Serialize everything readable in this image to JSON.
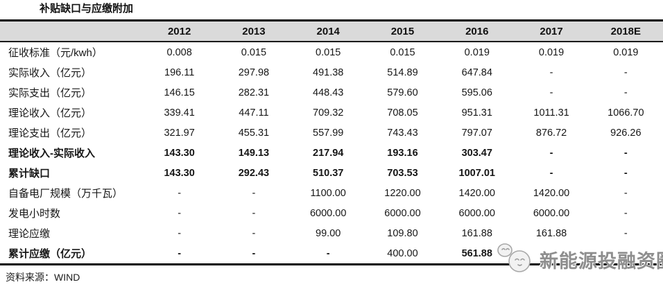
{
  "title": "补贴缺口与应缴附加",
  "source": "资料来源：WIND",
  "watermark": {
    "text": "新能源投融资圈",
    "icon": "panda-chat-bubble-icon"
  },
  "colors": {
    "header_bg": "#dadada",
    "border": "#000000",
    "watermark_gray": "#8e8e8e",
    "text": "#141414"
  },
  "chart_data": {
    "type": "table",
    "title": "补贴缺口与应缴附加",
    "columns": [
      "",
      "2012",
      "2013",
      "2014",
      "2015",
      "2016",
      "2017",
      "2018E"
    ],
    "rows": [
      {
        "label": "征收标准（元/kwh）",
        "bold": false,
        "values": [
          "0.008",
          "0.015",
          "0.015",
          "0.015",
          "0.019",
          "0.019",
          "0.019"
        ]
      },
      {
        "label": "实际收入（亿元）",
        "bold": false,
        "values": [
          "196.11",
          "297.98",
          "491.38",
          "514.89",
          "647.84",
          "-",
          "-"
        ]
      },
      {
        "label": "实际支出（亿元）",
        "bold": false,
        "values": [
          "146.15",
          "282.31",
          "448.43",
          "579.60",
          "595.06",
          "-",
          "-"
        ]
      },
      {
        "label": "理论收入（亿元）",
        "bold": false,
        "values": [
          "339.41",
          "447.11",
          "709.32",
          "708.05",
          "951.31",
          "1011.31",
          "1066.70"
        ]
      },
      {
        "label": "理论支出（亿元）",
        "bold": false,
        "values": [
          "321.97",
          "455.31",
          "557.99",
          "743.43",
          "797.07",
          "876.72",
          "926.26"
        ]
      },
      {
        "label": "理论收入-实际收入",
        "bold": true,
        "values": [
          "143.30",
          "149.13",
          "217.94",
          "193.16",
          "303.47",
          "-",
          "-"
        ]
      },
      {
        "label": "累计缺口",
        "bold": true,
        "values": [
          "143.30",
          "292.43",
          "510.37",
          "703.53",
          "1007.01",
          "-",
          "-"
        ]
      },
      {
        "label": "自备电厂规模（万千瓦）",
        "bold": false,
        "values": [
          "-",
          "-",
          "1100.00",
          "1220.00",
          "1420.00",
          "1420.00",
          "-"
        ]
      },
      {
        "label": "发电小时数",
        "bold": false,
        "values": [
          "-",
          "-",
          "6000.00",
          "6000.00",
          "6000.00",
          "6000.00",
          "-"
        ]
      },
      {
        "label": "理论应缴",
        "bold": false,
        "values": [
          "-",
          "-",
          "99.00",
          "109.80",
          "161.88",
          "161.88",
          "-"
        ]
      },
      {
        "label": "累计应缴（亿元）",
        "bold": true,
        "regular_cols": [
          3
        ],
        "values": [
          "-",
          "-",
          "-",
          "400.00",
          "561.88",
          "",
          ""
        ]
      }
    ]
  }
}
